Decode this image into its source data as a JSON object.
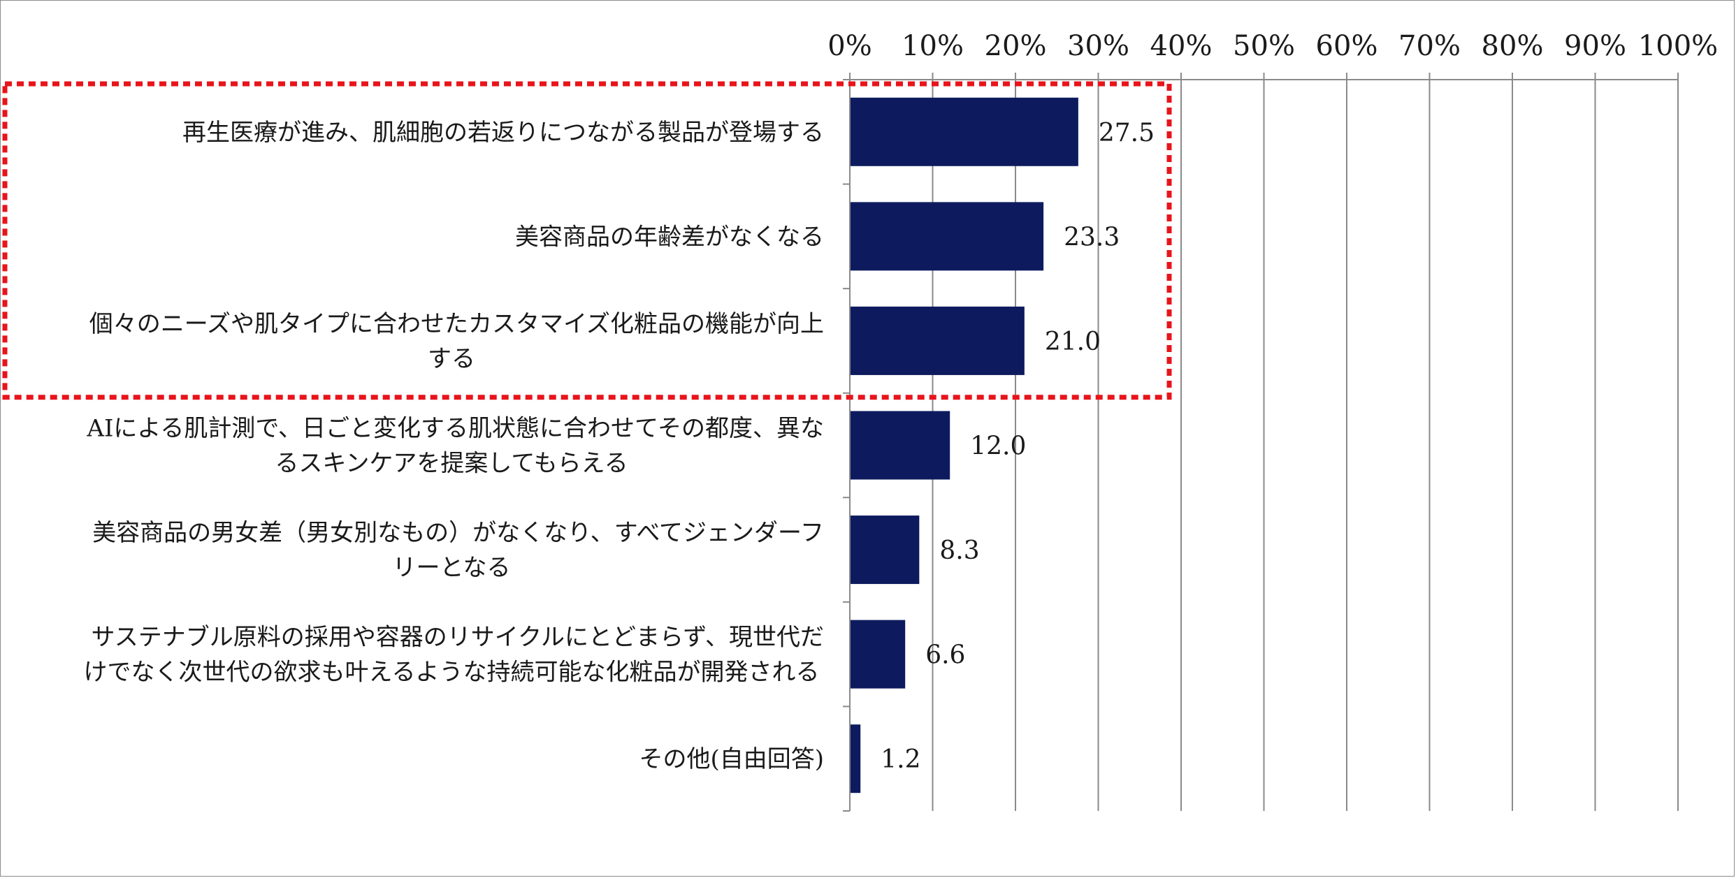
{
  "chart_data": {
    "type": "bar",
    "orientation": "horizontal",
    "categories": [
      [
        "再生医療が進み、肌細胞の若返りにつながる製品が登場する"
      ],
      [
        "美容商品の年齢差がなくなる"
      ],
      [
        "個々のニーズや肌タイプに合わせたカスタマイズ化粧品の機能が向上",
        "する"
      ],
      [
        "AIによる肌計測で、日ごと変化する肌状態に合わせてその都度、異な",
        "るスキンケアを提案してもらえる"
      ],
      [
        "美容商品の男女差（男女別なもの）がなくなり、すべてジェンダーフ",
        "リーとなる"
      ],
      [
        "サステナブル原料の採用や容器のリサイクルにとどまらず、現世代だ",
        "けでなく次世代の欲求も叶えるような持続可能な化粧品が開発される"
      ],
      [
        "その他(自由回答)"
      ]
    ],
    "values": [
      27.5,
      23.3,
      21.0,
      12.0,
      8.3,
      6.6,
      1.2
    ],
    "value_labels": [
      "27.5",
      "23.3",
      "21.0",
      "12.0",
      "8.3",
      "6.6",
      "1.2"
    ],
    "xlim": [
      0,
      100
    ],
    "xticks": [
      "0%",
      "10%",
      "20%",
      "30%",
      "40%",
      "50%",
      "60%",
      "70%",
      "80%",
      "90%",
      "100%"
    ],
    "x_axis_position": "top",
    "grid": true,
    "legend": "none",
    "bar_color": "#0d1b5e",
    "gridline_color": "#8a8a8a",
    "highlight": {
      "style": "dotted",
      "color": "#e8141b",
      "covers_categories": [
        0,
        1,
        2
      ]
    }
  }
}
